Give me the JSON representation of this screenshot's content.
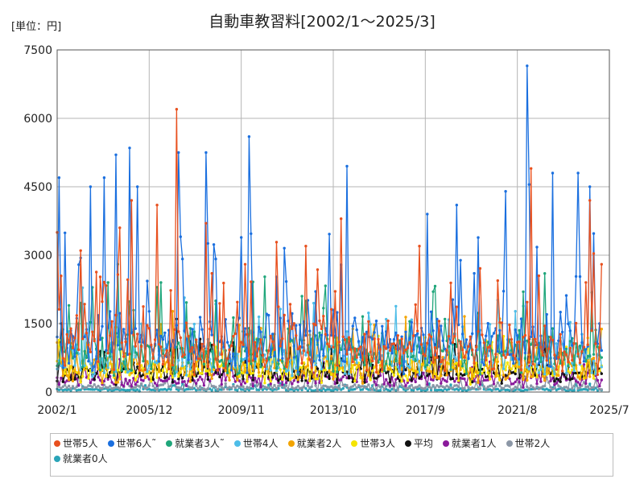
{
  "chart_data": {
    "type": "line",
    "title": "自動車教習料[2002/1〜2025/3]",
    "unit_label": "[単位：円]",
    "x_range": [
      "2002/1",
      "2025/3"
    ],
    "xlim": [
      "2002/1",
      "2025/7"
    ],
    "x_ticks": [
      "2002/1",
      "2005/12",
      "2009/11",
      "2013/10",
      "2017/9",
      "2021/8",
      "2025/7"
    ],
    "ylim": [
      0,
      7500
    ],
    "y_ticks": [
      0,
      1500,
      3000,
      4500,
      6000,
      7500
    ],
    "grid": true,
    "legend_position": "bottom",
    "series": [
      {
        "name": "世帯5人",
        "color": "#e8501e",
        "base": 900,
        "spread": 2200,
        "peaks": [
          {
            "x": "2002/1",
            "y": 3500
          },
          {
            "x": "2003/1",
            "y": 3100
          },
          {
            "x": "2004/9",
            "y": 3600
          },
          {
            "x": "2005/3",
            "y": 4200
          },
          {
            "x": "2006/4",
            "y": 4100
          },
          {
            "x": "2007/2",
            "y": 6200
          },
          {
            "x": "2008/5",
            "y": 3700
          },
          {
            "x": "2010/1",
            "y": 2800
          },
          {
            "x": "2012/8",
            "y": 3200
          },
          {
            "x": "2014/2",
            "y": 3800
          },
          {
            "x": "2017/6",
            "y": 3200
          },
          {
            "x": "2022/3",
            "y": 4900
          },
          {
            "x": "2024/9",
            "y": 4200
          },
          {
            "x": "2025/3",
            "y": 2800
          }
        ]
      },
      {
        "name": "世帯6人˜",
        "color": "#1a6fdf",
        "base": 1000,
        "spread": 2600,
        "peaks": [
          {
            "x": "2002/2",
            "y": 4700
          },
          {
            "x": "2003/6",
            "y": 4500
          },
          {
            "x": "2004/1",
            "y": 4700
          },
          {
            "x": "2004/7",
            "y": 5200
          },
          {
            "x": "2005/2",
            "y": 5350
          },
          {
            "x": "2005/6",
            "y": 4500
          },
          {
            "x": "2007/3",
            "y": 5250
          },
          {
            "x": "2008/5",
            "y": 5250
          },
          {
            "x": "2010/3",
            "y": 5600
          },
          {
            "x": "2014/5",
            "y": 4950
          },
          {
            "x": "2017/10",
            "y": 3900
          },
          {
            "x": "2019/1",
            "y": 4100
          },
          {
            "x": "2021/2",
            "y": 4400
          },
          {
            "x": "2022/1",
            "y": 7150
          },
          {
            "x": "2022/2",
            "y": 4550
          },
          {
            "x": "2023/2",
            "y": 4800
          },
          {
            "x": "2024/3",
            "y": 4800
          },
          {
            "x": "2024/9",
            "y": 4500
          }
        ]
      },
      {
        "name": "就業者3人˜",
        "color": "#1fa67a",
        "base": 800,
        "spread": 1700,
        "peaks": [
          {
            "x": "2004/8",
            "y": 2800
          },
          {
            "x": "2006/6",
            "y": 2400
          },
          {
            "x": "2012/6",
            "y": 2100
          },
          {
            "x": "2018/1",
            "y": 2200
          },
          {
            "x": "2022/10",
            "y": 2600
          }
        ]
      },
      {
        "name": "世帯4人",
        "color": "#4dbde8",
        "base": 700,
        "spread": 1500,
        "peaks": []
      },
      {
        "name": "就業者2人",
        "color": "#f2a400",
        "base": 500,
        "spread": 1200,
        "peaks": []
      },
      {
        "name": "世帯3人",
        "color": "#f5e400",
        "base": 450,
        "spread": 900,
        "peaks": []
      },
      {
        "name": "平均",
        "color": "#111111",
        "base": 400,
        "spread": 800,
        "peaks": [
          {
            "x": "2002/3",
            "y": 1500
          },
          {
            "x": "2007/2",
            "y": 1600
          }
        ]
      },
      {
        "name": "就業者1人",
        "color": "#8a1a9b",
        "base": 250,
        "spread": 600,
        "peaks": []
      },
      {
        "name": "世帯2人",
        "color": "#8c97a6",
        "base": 90,
        "spread": 230,
        "peaks": []
      },
      {
        "name": "就業者0人",
        "color": "#2aa4b8",
        "base": 40,
        "spread": 150,
        "peaks": []
      }
    ]
  }
}
